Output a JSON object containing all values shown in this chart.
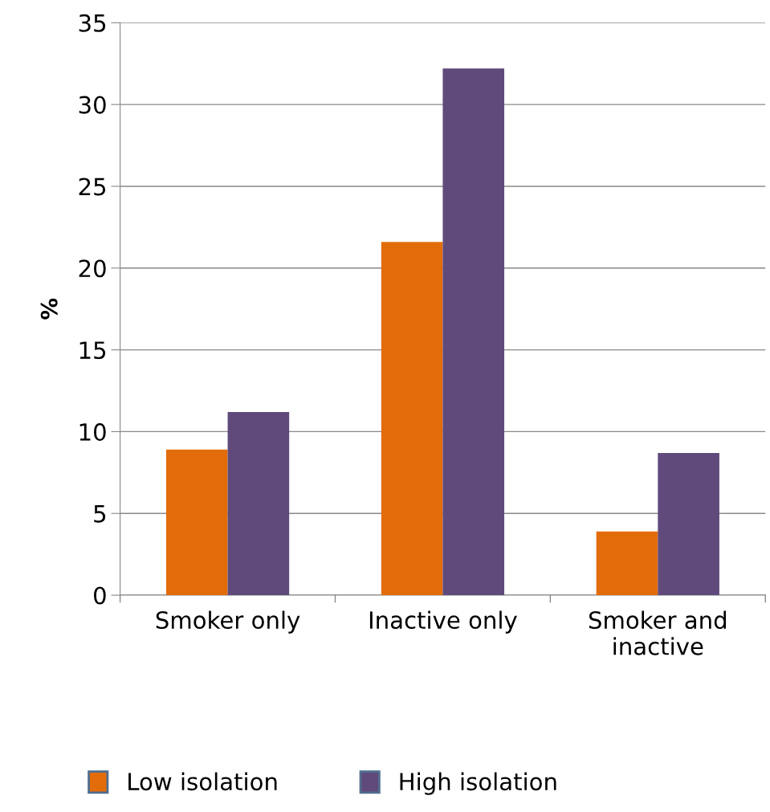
{
  "chart_data": {
    "type": "bar",
    "ylabel": "%",
    "categories": [
      "Smoker only",
      "Inactive only",
      "Smoker and\ninactive"
    ],
    "series": [
      {
        "name": "Low isolation",
        "color": "#e36c0a",
        "values": [
          8.9,
          21.6,
          3.9
        ]
      },
      {
        "name": "High isolation",
        "color": "#604a7b",
        "values": [
          11.2,
          32.2,
          8.7
        ]
      }
    ],
    "ylim": [
      0,
      35
    ],
    "yticks": [
      0,
      5,
      10,
      15,
      20,
      25,
      30,
      35
    ],
    "grid": "y",
    "legend": "bottom"
  }
}
